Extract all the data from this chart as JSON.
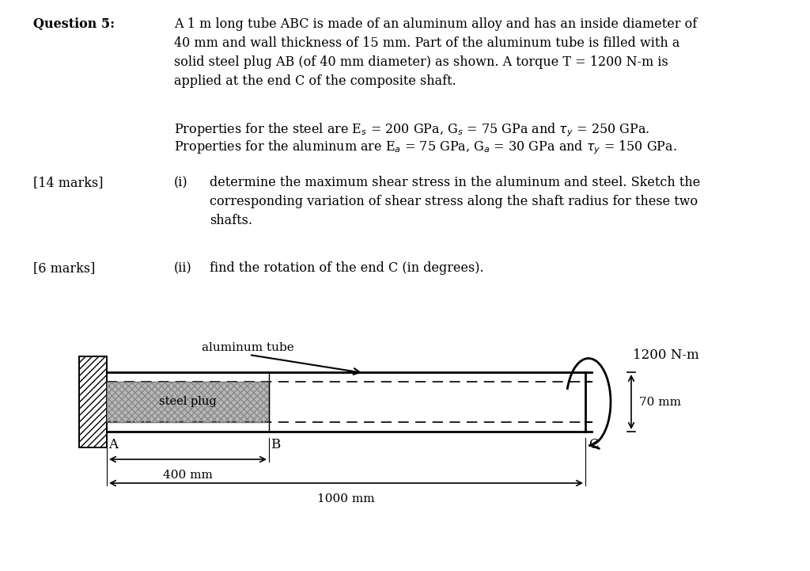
{
  "bg_color": "#ffffff",
  "body_text": "A 1 m long tube ABC is made of an aluminum alloy and has an inside diameter of\n40 mm and wall thickness of 15 mm. Part of the aluminum tube is filled with a\nsolid steel plug AB (of 40 mm diameter) as shown. A torque T = 1200 N-m is\napplied at the end C of the composite shaft.",
  "props1": "Properties for the steel are E$_s$ = 200 GPa, G$_s$ = 75 GPa and $\\tau_y$ = 250 GPa.",
  "props2": "Properties for the aluminum are E$_a$ = 75 GPa, G$_a$ = 30 GPa and $\\tau_y$ = 150 GPa.",
  "part_i_text": "determine the maximum shear stress in the aluminum and steel. Sketch the\ncorresponding variation of shear stress along the shaft radius for these two\nshafts.",
  "part_ii_text": "find the rotation of the end C (in degrees).",
  "text_fontsize": 11.5,
  "diagram_label_fontsize": 11,
  "torque_label": "1200 N-m",
  "dim_70": "70 mm",
  "dim_400": "400 mm",
  "dim_1000": "1000 mm",
  "alum_label": "aluminum tube",
  "steel_label": "steel plug"
}
